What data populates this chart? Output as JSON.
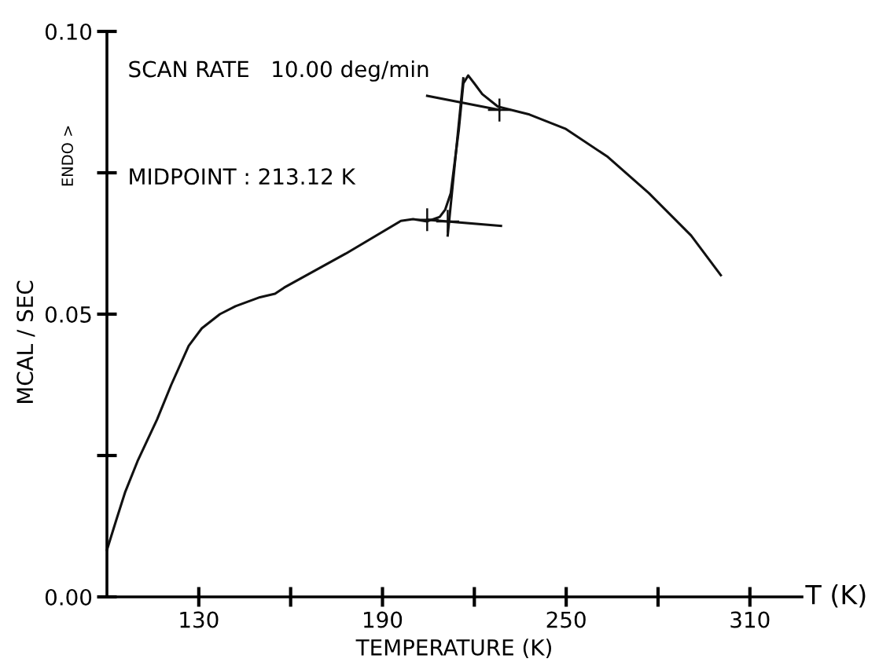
{
  "chart_data": {
    "type": "line",
    "xlabel": "TEMPERATURE (K)",
    "ylabel": "MCAL / SEC",
    "annotations": [
      "SCAN RATE   10.00 deg/min",
      "MIDPOINT : 213.12 K",
      "T (K)",
      "ENDO >"
    ],
    "xlim": [
      100,
      327
    ],
    "ylim": [
      0,
      0.1
    ],
    "xticks": [
      {
        "value": 130,
        "label": "130"
      },
      {
        "value": 160,
        "label": null
      },
      {
        "value": 190,
        "label": "190"
      },
      {
        "value": 220,
        "label": null
      },
      {
        "value": 250,
        "label": "250"
      },
      {
        "value": 280,
        "label": null
      },
      {
        "value": 310,
        "label": "310"
      }
    ],
    "yticks": [
      {
        "value": 0,
        "label": "0.00"
      },
      {
        "value": 0.025,
        "label": null
      },
      {
        "value": 0.05,
        "label": "0.05"
      },
      {
        "value": 0.075,
        "label": null
      },
      {
        "value": 0.1,
        "label": "0.10"
      }
    ],
    "grid": false,
    "legend": false,
    "line_style": "solid",
    "series": [
      {
        "color": "#111111",
        "x": [
          100,
          103,
          106,
          110,
          116.4,
          121,
          126.7,
          131,
          136.9,
          142,
          146,
          150,
          154.9,
          157.9,
          178,
          196,
          200,
          204.6,
          208.7,
          210.5,
          212.3,
          214.9,
          216.4,
          218,
          220,
          222.6,
          227.7,
          238,
          249.7,
          263.6,
          277,
          290.8,
          300.5
        ],
        "values": [
          0.0083,
          0.0135,
          0.0186,
          0.024,
          0.0314,
          0.0375,
          0.0444,
          0.0475,
          0.05,
          0.0514,
          0.0522,
          0.053,
          0.0536,
          0.0547,
          0.0607,
          0.0665,
          0.0668,
          0.0664,
          0.0672,
          0.0685,
          0.0714,
          0.0825,
          0.0908,
          0.0922,
          0.0908,
          0.0889,
          0.0867,
          0.0853,
          0.0828,
          0.0778,
          0.0714,
          0.0639,
          0.0569
        ]
      },
      {
        "color": "#111111",
        "x": [
          204.6,
          228.7
        ],
        "values": [
          0.0667,
          0.0656
        ]
      },
      {
        "color": "#111111",
        "x": [
          204.6,
          228.2
        ],
        "values": [
          0.0886,
          0.0861
        ]
      },
      {
        "color": "#111111",
        "x": [
          211.3,
          216.4
        ],
        "values": [
          0.0639,
          0.0917
        ]
      },
      {
        "type": "scatter",
        "marker": "cross",
        "color": "#111111",
        "x": [
          204.6,
          211.3,
          228.2
        ],
        "values": [
          0.0667,
          0.0664,
          0.0861
        ]
      }
    ]
  }
}
